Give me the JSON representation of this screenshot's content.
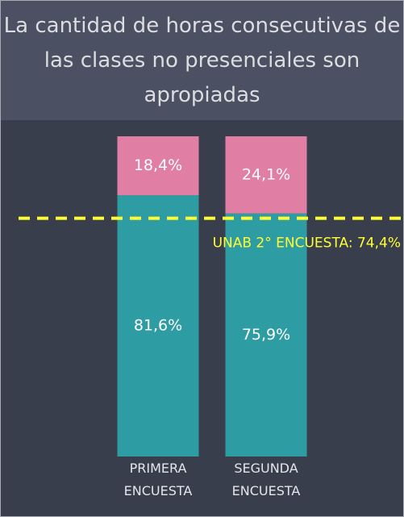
{
  "chart_data": {
    "type": "stacked_bar",
    "title": "La cantidad de horas consecutivas de las clases no presenciales son apropiadas",
    "categories": [
      "PRIMERA ENCUESTA",
      "SEGUNDA ENCUESTA"
    ],
    "series": [
      {
        "color": "#2e9ca3",
        "values": [
          81.6,
          75.9
        ],
        "value_labels": [
          "81,6%",
          "75,9%"
        ]
      },
      {
        "color": "#e07ea4",
        "values": [
          18.4,
          24.1
        ],
        "value_labels": [
          "18,4%",
          "24,1%"
        ]
      }
    ],
    "ylim": [
      0,
      100
    ],
    "reference_line": {
      "value": 74.4,
      "label": "UNAB 2° ENCUESTA: 74,4%",
      "color": "#ffff33"
    }
  }
}
